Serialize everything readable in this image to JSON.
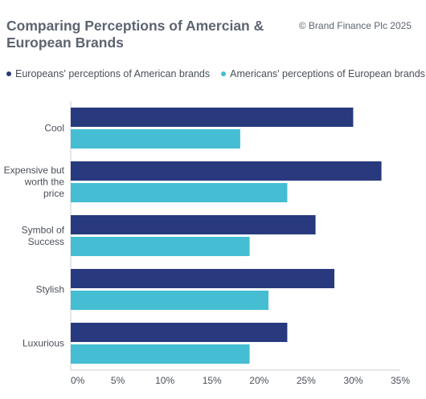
{
  "header": {
    "title": "Comparing Perceptions of Amercian & European Brands",
    "credit": "© Brand Finance Plc 2025"
  },
  "colors": {
    "series1": "#283a7d",
    "series2": "#45bdd3",
    "axis": "#c9ccd1",
    "text": "#4a4f58"
  },
  "chart_data": {
    "type": "bar",
    "orientation": "horizontal",
    "title": "Comparing Perceptions of Amercian & European Brands",
    "categories": [
      [
        "Cool"
      ],
      [
        "Expensive but",
        "worth the",
        "price"
      ],
      [
        "Symbol of",
        "Success"
      ],
      [
        "Stylish"
      ],
      [
        "Luxurious"
      ]
    ],
    "series": [
      {
        "name": "Europeans' perceptions of American brands",
        "color": "#283a7d",
        "values": [
          30,
          33,
          26,
          28,
          23
        ]
      },
      {
        "name": "Americans' perceptions of European brands",
        "color": "#45bdd3",
        "values": [
          18,
          23,
          19,
          21,
          19
        ]
      }
    ],
    "xlim": [
      0,
      35
    ],
    "xticks": [
      "0%",
      "5%",
      "10%",
      "15%",
      "20%",
      "25%",
      "30%",
      "35%"
    ],
    "xtick_values": [
      0,
      5,
      10,
      15,
      20,
      25,
      30,
      35
    ],
    "legend": "top",
    "grid": false
  }
}
